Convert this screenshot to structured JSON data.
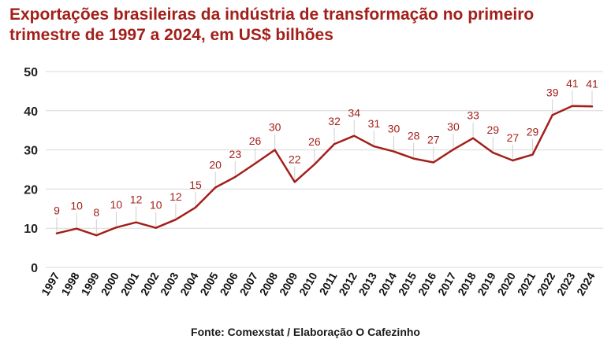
{
  "chart_data": {
    "type": "line",
    "title_line1": "Exportações brasileiras da indústria de transformação no primeiro",
    "title_line2": "trimestre de 1997 a 2024, em US$ bilhões",
    "source": "Fonte: Comexstat / Elaboração O Cafezinho",
    "categories": [
      "1997",
      "1998",
      "1999",
      "2000",
      "2001",
      "2002",
      "2003",
      "2004",
      "2005",
      "2006",
      "2007",
      "2008",
      "2009",
      "2010",
      "2011",
      "2012",
      "2013",
      "2014",
      "2015",
      "2016",
      "2017",
      "2018",
      "2019",
      "2020",
      "2021",
      "2022",
      "2023",
      "2024"
    ],
    "values": [
      8.7,
      9.9,
      8.2,
      10.2,
      11.5,
      10.1,
      12.2,
      15.3,
      20.4,
      23.1,
      26.5,
      30.0,
      21.8,
      26.3,
      31.5,
      33.6,
      30.9,
      29.6,
      27.8,
      26.8,
      30.1,
      33.0,
      29.3,
      27.3,
      28.8,
      38.9,
      41.2,
      41.1
    ],
    "data_labels": [
      "9",
      "10",
      "8",
      "10",
      "12",
      "10",
      "12",
      "15",
      "20",
      "23",
      "26",
      "30",
      "22",
      "26",
      "32",
      "34",
      "31",
      "30",
      "28",
      "27",
      "30",
      "33",
      "29",
      "27",
      "29",
      "39",
      "41",
      "41"
    ],
    "y_ticks": [
      0,
      10,
      20,
      30,
      40,
      50
    ],
    "ylim": [
      0,
      50
    ],
    "grid": true,
    "legend": "none",
    "line_color": "#a31f1a"
  }
}
